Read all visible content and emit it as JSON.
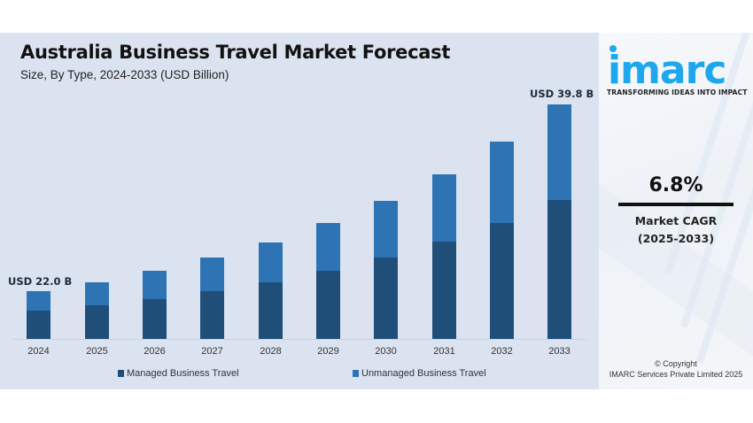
{
  "header": {
    "title": "Australia Business Travel Market Forecast",
    "subtitle": "Size, By Type, 2024-2033 (USD Billion)"
  },
  "callouts": {
    "start": "USD 22.0 B",
    "end": "USD 39.8 B"
  },
  "legend": {
    "managed": "Managed Business Travel",
    "unmanaged": "Unmanaged Business Travel"
  },
  "colors": {
    "managed": "#1f4e79",
    "unmanaged": "#2e74b5",
    "panel_bg": "#dbe3f0",
    "brand": "#1ea7ec"
  },
  "side": {
    "brand": "imarc",
    "tagline": "TRANSFORMING IDEAS INTO IMPACT",
    "cagr_value": "6.8%",
    "cagr_label": "Market CAGR",
    "cagr_period": "(2025-2033)",
    "copyright_line1": "© Copyright",
    "copyright_line2": "IMARC Services Private Limited 2025"
  },
  "chart_data": {
    "type": "bar",
    "stacked": true,
    "title": "Australia Business Travel Market Forecast",
    "subtitle": "Size, By Type, 2024-2033 (USD Billion)",
    "xlabel": "",
    "ylabel": "USD Billion",
    "categories": [
      "2024",
      "2025",
      "2026",
      "2027",
      "2028",
      "2029",
      "2030",
      "2031",
      "2032",
      "2033"
    ],
    "totals": [
      22.0,
      22.8,
      23.9,
      25.2,
      26.6,
      28.5,
      30.6,
      33.1,
      36.3,
      39.8
    ],
    "series": [
      {
        "name": "Managed Business Travel",
        "values": [
          13.0,
          13.5,
          14.0,
          14.8,
          15.6,
          16.8,
          18.0,
          19.6,
          21.3,
          23.6
        ]
      },
      {
        "name": "Unmanaged Business Travel",
        "values": [
          9.0,
          9.3,
          9.9,
          10.4,
          11.0,
          11.7,
          12.6,
          13.5,
          15.0,
          16.2
        ]
      }
    ],
    "annotations": [
      "USD 22.0 B (2024)",
      "USD 39.8 B (2033)",
      "Market CAGR 6.8% (2025-2033)"
    ],
    "legend_position": "bottom",
    "grid": false,
    "bar_pixels": {
      "baseline_y": 346,
      "x": [
        30,
        96,
        161,
        226,
        292,
        357,
        422,
        488,
        553,
        618
      ],
      "total_h": [
        54,
        64,
        77,
        92,
        109,
        131,
        156,
        186,
        223,
        265
      ],
      "managed_h": [
        32,
        38,
        45,
        54,
        64,
        77,
        92,
        110,
        131,
        157
      ]
    }
  }
}
